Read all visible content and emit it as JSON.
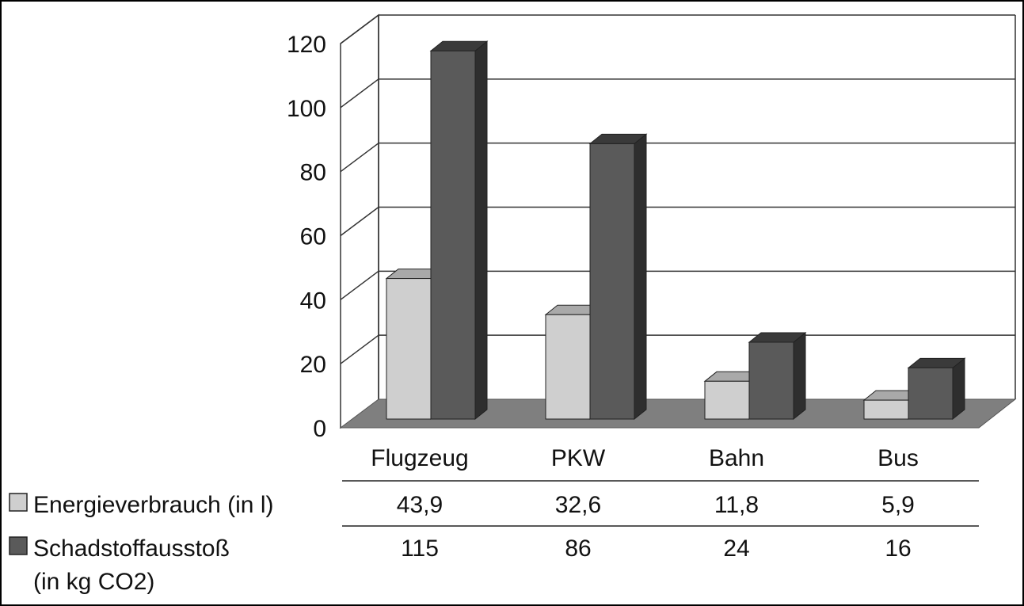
{
  "chart_data": {
    "type": "bar",
    "three_d": true,
    "categories": [
      "Flugzeug",
      "PKW",
      "Bahn",
      "Bus"
    ],
    "series": [
      {
        "name": "Energieverbrauch (in l)",
        "values": [
          43.9,
          32.6,
          11.8,
          5.9
        ],
        "labels": [
          "43,9",
          "32,6",
          "11,8",
          "5,9"
        ],
        "color": "#cfcfcf"
      },
      {
        "name_lines": [
          "Schadstoffausstoß",
          "(in kg CO2)"
        ],
        "values": [
          115,
          86,
          24,
          16
        ],
        "labels": [
          "115",
          "86",
          "24",
          "16"
        ],
        "color": "#5a5a5a"
      }
    ],
    "yticks": [
      "0",
      "20",
      "40",
      "60",
      "80",
      "100",
      "120"
    ],
    "ylim": [
      0,
      120
    ],
    "grid": true,
    "legend": "data-table-below",
    "colors": {
      "floor": "#7f7f7f",
      "grid": "#333333",
      "light_front": "#cfcfcf",
      "light_top": "#a9a9a9",
      "light_side": "#9a9a9a",
      "dark_front": "#5a5a5a",
      "dark_top": "#3a3a3a",
      "dark_side": "#2e2e2e"
    }
  }
}
